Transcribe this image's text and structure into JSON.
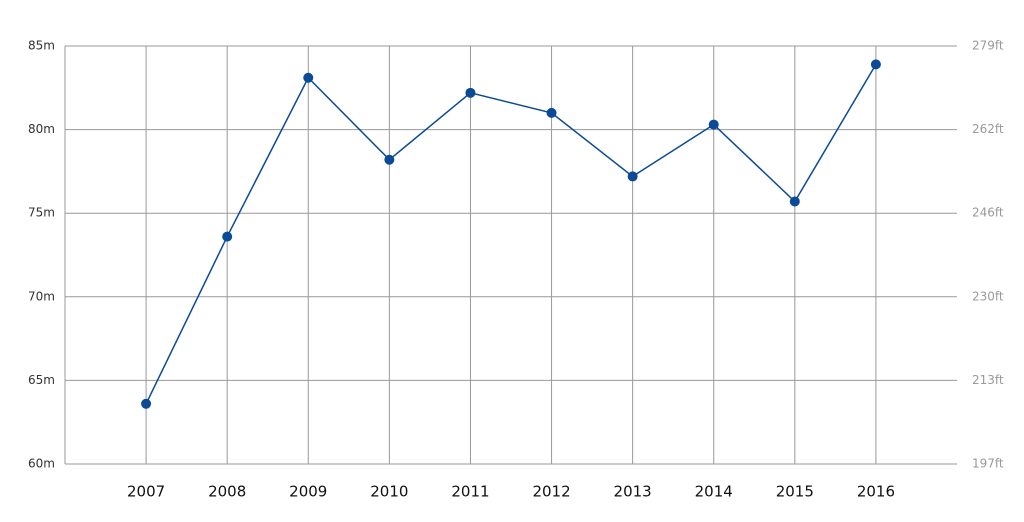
{
  "chart_data": {
    "type": "line",
    "categories": [
      "2007",
      "2008",
      "2009",
      "2010",
      "2011",
      "2012",
      "2013",
      "2014",
      "2015",
      "2016"
    ],
    "values": [
      63.6,
      73.6,
      83.1,
      78.2,
      82.2,
      81.0,
      77.2,
      80.3,
      75.7,
      83.9
    ],
    "color": "#0b4a96",
    "ylim": [
      60,
      85
    ],
    "yticks": [
      {
        "value": 60,
        "label": "60m"
      },
      {
        "value": 65,
        "label": "65m"
      },
      {
        "value": 70,
        "label": "70m"
      },
      {
        "value": 75,
        "label": "75m"
      },
      {
        "value": 80,
        "label": "80m"
      },
      {
        "value": 85,
        "label": "85m"
      }
    ],
    "y2lim": [
      196.85,
      278.87
    ],
    "y2ticks": [
      {
        "value": 196.85,
        "label": "197ft"
      },
      {
        "value": 213.25,
        "label": "213ft"
      },
      {
        "value": 229.66,
        "label": "230ft"
      },
      {
        "value": 246.06,
        "label": "246ft"
      },
      {
        "value": 262.47,
        "label": "262ft"
      },
      {
        "value": 278.87,
        "label": "279ft"
      }
    ],
    "grid": true
  }
}
